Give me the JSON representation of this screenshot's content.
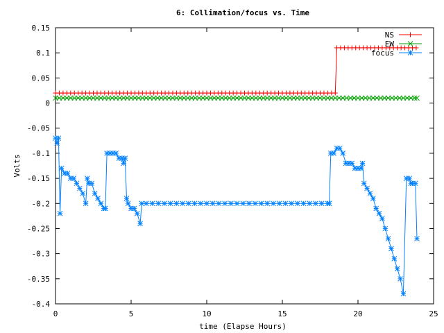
{
  "chart_data": {
    "type": "line",
    "title": "6: Collimation/focus vs. Time",
    "xlabel": "time (Elapse Hours)",
    "ylabel": "Volts",
    "xlim": [
      0,
      25
    ],
    "ylim": [
      -0.4,
      0.15
    ],
    "grid": false,
    "legend_position": "top-right",
    "x_ticks": [
      0,
      5,
      10,
      15,
      20,
      25
    ],
    "y_ticks": [
      0.15,
      0.1,
      0.05,
      0,
      -0.05,
      -0.1,
      -0.15,
      -0.2,
      -0.25,
      -0.3,
      -0.35,
      -0.4
    ],
    "x_tick_labels": [
      "0",
      "5",
      "10",
      "15",
      "20",
      "25"
    ],
    "y_tick_labels": [
      "0.15",
      "0.1",
      "0.05",
      "0",
      "-0.05",
      "-0.1",
      "-0.15",
      "-0.2",
      "-0.25",
      "-0.3",
      "-0.35",
      "-0.4"
    ],
    "series": [
      {
        "name": "NS",
        "color": "#ff0000",
        "marker": "plus",
        "points": [
          [
            0.0,
            0.02
          ],
          [
            0.25,
            0.02
          ],
          [
            0.5,
            0.02
          ],
          [
            0.75,
            0.02
          ],
          [
            1.0,
            0.02
          ],
          [
            1.25,
            0.02
          ],
          [
            1.5,
            0.02
          ],
          [
            1.75,
            0.02
          ],
          [
            2.0,
            0.02
          ],
          [
            2.25,
            0.02
          ],
          [
            2.5,
            0.02
          ],
          [
            2.75,
            0.02
          ],
          [
            3.0,
            0.02
          ],
          [
            3.25,
            0.02
          ],
          [
            3.5,
            0.02
          ],
          [
            3.75,
            0.02
          ],
          [
            4.0,
            0.02
          ],
          [
            4.25,
            0.02
          ],
          [
            4.5,
            0.02
          ],
          [
            4.75,
            0.02
          ],
          [
            5.0,
            0.02
          ],
          [
            5.25,
            0.02
          ],
          [
            5.5,
            0.02
          ],
          [
            5.75,
            0.02
          ],
          [
            6.0,
            0.02
          ],
          [
            6.25,
            0.02
          ],
          [
            6.5,
            0.02
          ],
          [
            6.75,
            0.02
          ],
          [
            7.0,
            0.02
          ],
          [
            7.25,
            0.02
          ],
          [
            7.5,
            0.02
          ],
          [
            7.75,
            0.02
          ],
          [
            8.0,
            0.02
          ],
          [
            8.25,
            0.02
          ],
          [
            8.5,
            0.02
          ],
          [
            8.75,
            0.02
          ],
          [
            9.0,
            0.02
          ],
          [
            9.25,
            0.02
          ],
          [
            9.5,
            0.02
          ],
          [
            9.75,
            0.02
          ],
          [
            10.0,
            0.02
          ],
          [
            10.25,
            0.02
          ],
          [
            10.5,
            0.02
          ],
          [
            10.75,
            0.02
          ],
          [
            11.0,
            0.02
          ],
          [
            11.25,
            0.02
          ],
          [
            11.5,
            0.02
          ],
          [
            11.75,
            0.02
          ],
          [
            12.0,
            0.02
          ],
          [
            12.25,
            0.02
          ],
          [
            12.5,
            0.02
          ],
          [
            12.75,
            0.02
          ],
          [
            13.0,
            0.02
          ],
          [
            13.25,
            0.02
          ],
          [
            13.5,
            0.02
          ],
          [
            13.75,
            0.02
          ],
          [
            14.0,
            0.02
          ],
          [
            14.25,
            0.02
          ],
          [
            14.5,
            0.02
          ],
          [
            14.75,
            0.02
          ],
          [
            15.0,
            0.02
          ],
          [
            15.25,
            0.02
          ],
          [
            15.5,
            0.02
          ],
          [
            15.75,
            0.02
          ],
          [
            16.0,
            0.02
          ],
          [
            16.25,
            0.02
          ],
          [
            16.5,
            0.02
          ],
          [
            16.75,
            0.02
          ],
          [
            17.0,
            0.02
          ],
          [
            17.25,
            0.02
          ],
          [
            17.5,
            0.02
          ],
          [
            17.75,
            0.02
          ],
          [
            18.0,
            0.02
          ],
          [
            18.25,
            0.02
          ],
          [
            18.5,
            0.02
          ],
          [
            18.6,
            0.11
          ],
          [
            18.85,
            0.11
          ],
          [
            19.1,
            0.11
          ],
          [
            19.35,
            0.11
          ],
          [
            19.6,
            0.11
          ],
          [
            19.85,
            0.11
          ],
          [
            20.1,
            0.11
          ],
          [
            20.35,
            0.11
          ],
          [
            20.6,
            0.11
          ],
          [
            20.85,
            0.11
          ],
          [
            21.1,
            0.11
          ],
          [
            21.35,
            0.11
          ],
          [
            21.6,
            0.11
          ],
          [
            21.85,
            0.11
          ],
          [
            22.1,
            0.11
          ],
          [
            22.35,
            0.11
          ],
          [
            22.6,
            0.11
          ],
          [
            22.85,
            0.11
          ],
          [
            23.1,
            0.11
          ],
          [
            23.35,
            0.11
          ],
          [
            23.6,
            0.11
          ],
          [
            23.85,
            0.11
          ]
        ]
      },
      {
        "name": "EW",
        "color": "#00a000",
        "marker": "cross",
        "points": [
          [
            0.0,
            0.01
          ],
          [
            0.25,
            0.01
          ],
          [
            0.5,
            0.01
          ],
          [
            0.75,
            0.01
          ],
          [
            1.0,
            0.01
          ],
          [
            1.25,
            0.01
          ],
          [
            1.5,
            0.01
          ],
          [
            1.75,
            0.01
          ],
          [
            2.0,
            0.01
          ],
          [
            2.25,
            0.01
          ],
          [
            2.5,
            0.01
          ],
          [
            2.75,
            0.01
          ],
          [
            3.0,
            0.01
          ],
          [
            3.25,
            0.01
          ],
          [
            3.5,
            0.01
          ],
          [
            3.75,
            0.01
          ],
          [
            4.0,
            0.01
          ],
          [
            4.25,
            0.01
          ],
          [
            4.5,
            0.01
          ],
          [
            4.75,
            0.01
          ],
          [
            5.0,
            0.01
          ],
          [
            5.25,
            0.01
          ],
          [
            5.5,
            0.01
          ],
          [
            5.75,
            0.01
          ],
          [
            6.0,
            0.01
          ],
          [
            6.25,
            0.01
          ],
          [
            6.5,
            0.01
          ],
          [
            6.75,
            0.01
          ],
          [
            7.0,
            0.01
          ],
          [
            7.25,
            0.01
          ],
          [
            7.5,
            0.01
          ],
          [
            7.75,
            0.01
          ],
          [
            8.0,
            0.01
          ],
          [
            8.25,
            0.01
          ],
          [
            8.5,
            0.01
          ],
          [
            8.75,
            0.01
          ],
          [
            9.0,
            0.01
          ],
          [
            9.25,
            0.01
          ],
          [
            9.5,
            0.01
          ],
          [
            9.75,
            0.01
          ],
          [
            10.0,
            0.01
          ],
          [
            10.25,
            0.01
          ],
          [
            10.5,
            0.01
          ],
          [
            10.75,
            0.01
          ],
          [
            11.0,
            0.01
          ],
          [
            11.25,
            0.01
          ],
          [
            11.5,
            0.01
          ],
          [
            11.75,
            0.01
          ],
          [
            12.0,
            0.01
          ],
          [
            12.25,
            0.01
          ],
          [
            12.5,
            0.01
          ],
          [
            12.75,
            0.01
          ],
          [
            13.0,
            0.01
          ],
          [
            13.25,
            0.01
          ],
          [
            13.5,
            0.01
          ],
          [
            13.75,
            0.01
          ],
          [
            14.0,
            0.01
          ],
          [
            14.25,
            0.01
          ],
          [
            14.5,
            0.01
          ],
          [
            14.75,
            0.01
          ],
          [
            15.0,
            0.01
          ],
          [
            15.25,
            0.01
          ],
          [
            15.5,
            0.01
          ],
          [
            15.75,
            0.01
          ],
          [
            16.0,
            0.01
          ],
          [
            16.25,
            0.01
          ],
          [
            16.5,
            0.01
          ],
          [
            16.75,
            0.01
          ],
          [
            17.0,
            0.01
          ],
          [
            17.25,
            0.01
          ],
          [
            17.5,
            0.01
          ],
          [
            17.75,
            0.01
          ],
          [
            18.0,
            0.01
          ],
          [
            18.25,
            0.01
          ],
          [
            18.5,
            0.01
          ],
          [
            18.75,
            0.01
          ],
          [
            19.0,
            0.01
          ],
          [
            19.25,
            0.01
          ],
          [
            19.5,
            0.01
          ],
          [
            19.75,
            0.01
          ],
          [
            20.0,
            0.01
          ],
          [
            20.25,
            0.01
          ],
          [
            20.5,
            0.01
          ],
          [
            20.75,
            0.01
          ],
          [
            21.0,
            0.01
          ],
          [
            21.25,
            0.01
          ],
          [
            21.5,
            0.01
          ],
          [
            21.75,
            0.01
          ],
          [
            22.0,
            0.01
          ],
          [
            22.25,
            0.01
          ],
          [
            22.5,
            0.01
          ],
          [
            22.75,
            0.01
          ],
          [
            23.0,
            0.01
          ],
          [
            23.25,
            0.01
          ],
          [
            23.5,
            0.01
          ],
          [
            23.75,
            0.01
          ],
          [
            23.9,
            0.01
          ]
        ]
      },
      {
        "name": "focus",
        "color": "#0080ff",
        "marker": "star",
        "points": [
          [
            0.0,
            -0.07
          ],
          [
            0.1,
            -0.08
          ],
          [
            0.2,
            -0.07
          ],
          [
            0.3,
            -0.22
          ],
          [
            0.4,
            -0.13
          ],
          [
            0.6,
            -0.14
          ],
          [
            0.8,
            -0.14
          ],
          [
            1.0,
            -0.15
          ],
          [
            1.2,
            -0.15
          ],
          [
            1.4,
            -0.16
          ],
          [
            1.6,
            -0.17
          ],
          [
            1.8,
            -0.18
          ],
          [
            2.0,
            -0.2
          ],
          [
            2.1,
            -0.15
          ],
          [
            2.2,
            -0.16
          ],
          [
            2.4,
            -0.16
          ],
          [
            2.6,
            -0.18
          ],
          [
            2.8,
            -0.19
          ],
          [
            3.0,
            -0.2
          ],
          [
            3.2,
            -0.21
          ],
          [
            3.3,
            -0.21
          ],
          [
            3.4,
            -0.1
          ],
          [
            3.6,
            -0.1
          ],
          [
            3.8,
            -0.1
          ],
          [
            4.0,
            -0.1
          ],
          [
            4.2,
            -0.11
          ],
          [
            4.4,
            -0.11
          ],
          [
            4.5,
            -0.12
          ],
          [
            4.6,
            -0.11
          ],
          [
            4.7,
            -0.19
          ],
          [
            4.8,
            -0.2
          ],
          [
            5.0,
            -0.21
          ],
          [
            5.2,
            -0.21
          ],
          [
            5.4,
            -0.22
          ],
          [
            5.6,
            -0.24
          ],
          [
            5.7,
            -0.2
          ],
          [
            6.0,
            -0.2
          ],
          [
            6.4,
            -0.2
          ],
          [
            6.8,
            -0.2
          ],
          [
            7.2,
            -0.2
          ],
          [
            7.6,
            -0.2
          ],
          [
            8.0,
            -0.2
          ],
          [
            8.4,
            -0.2
          ],
          [
            8.8,
            -0.2
          ],
          [
            9.2,
            -0.2
          ],
          [
            9.6,
            -0.2
          ],
          [
            10.0,
            -0.2
          ],
          [
            10.4,
            -0.2
          ],
          [
            10.8,
            -0.2
          ],
          [
            11.2,
            -0.2
          ],
          [
            11.6,
            -0.2
          ],
          [
            12.0,
            -0.2
          ],
          [
            12.4,
            -0.2
          ],
          [
            12.8,
            -0.2
          ],
          [
            13.2,
            -0.2
          ],
          [
            13.6,
            -0.2
          ],
          [
            14.0,
            -0.2
          ],
          [
            14.4,
            -0.2
          ],
          [
            14.8,
            -0.2
          ],
          [
            15.2,
            -0.2
          ],
          [
            15.6,
            -0.2
          ],
          [
            16.0,
            -0.2
          ],
          [
            16.4,
            -0.2
          ],
          [
            16.8,
            -0.2
          ],
          [
            17.2,
            -0.2
          ],
          [
            17.6,
            -0.2
          ],
          [
            18.0,
            -0.2
          ],
          [
            18.1,
            -0.2
          ],
          [
            18.2,
            -0.1
          ],
          [
            18.4,
            -0.1
          ],
          [
            18.6,
            -0.09
          ],
          [
            18.8,
            -0.09
          ],
          [
            19.0,
            -0.1
          ],
          [
            19.2,
            -0.12
          ],
          [
            19.4,
            -0.12
          ],
          [
            19.6,
            -0.12
          ],
          [
            19.8,
            -0.13
          ],
          [
            20.0,
            -0.13
          ],
          [
            20.2,
            -0.13
          ],
          [
            20.3,
            -0.12
          ],
          [
            20.4,
            -0.16
          ],
          [
            20.6,
            -0.17
          ],
          [
            20.8,
            -0.18
          ],
          [
            21.0,
            -0.19
          ],
          [
            21.2,
            -0.21
          ],
          [
            21.4,
            -0.22
          ],
          [
            21.6,
            -0.23
          ],
          [
            21.8,
            -0.25
          ],
          [
            22.0,
            -0.27
          ],
          [
            22.2,
            -0.29
          ],
          [
            22.4,
            -0.31
          ],
          [
            22.6,
            -0.33
          ],
          [
            22.8,
            -0.35
          ],
          [
            23.0,
            -0.38
          ],
          [
            23.2,
            -0.15
          ],
          [
            23.4,
            -0.15
          ],
          [
            23.5,
            -0.16
          ],
          [
            23.6,
            -0.16
          ],
          [
            23.8,
            -0.16
          ],
          [
            23.9,
            -0.27
          ]
        ]
      }
    ]
  }
}
